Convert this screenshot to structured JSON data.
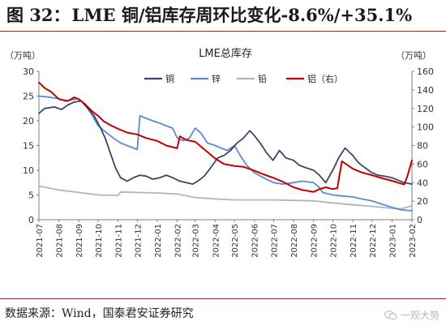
{
  "figure": {
    "number": "图 32：",
    "title": "LME 铜/铝库存周环比变化-8.6%/+35.1%",
    "source": "数据来源：Wind，国泰君安证券研究",
    "watermark": "一观大势",
    "watermark_icon": "wechat-icon"
  },
  "colors": {
    "rule": "#9b2a2a",
    "copper": "#3a4663",
    "zinc": "#5b8bd0",
    "lead": "#b4b4b4",
    "aluminum": "#c00000"
  },
  "chart_data": {
    "type": "line",
    "title": "LME总库存",
    "y_left_unit": "（万吨）",
    "y_right_unit": "（万吨）",
    "ylim_left": [
      0,
      30
    ],
    "ylim_right": [
      0,
      160
    ],
    "yticks_left": [
      "0",
      "5",
      "10",
      "15",
      "20",
      "25",
      "30"
    ],
    "yticks_right": [
      "0",
      "20",
      "40",
      "60",
      "80",
      "100",
      "120",
      "140",
      "160"
    ],
    "xlim": [
      "2021-07-01",
      "2023-02-01"
    ],
    "xticks": [
      "2021-07",
      "2021-08",
      "2021-09",
      "2021-10",
      "2021-11",
      "2021-12",
      "2022-01",
      "2022-02",
      "2022-03",
      "2022-04",
      "2022-05",
      "2022-06",
      "2022-07",
      "2022-08",
      "2022-09",
      "2022-10",
      "2022-11",
      "2022-12",
      "2023-01",
      "2023-02"
    ],
    "grid": false,
    "legend": "top-right",
    "series": [
      {
        "name": "铜",
        "axis": "left",
        "color_key": "copper",
        "x": [
          "2021-07-01",
          "2021-07-10",
          "2021-07-25",
          "2021-08-05",
          "2021-08-15",
          "2021-08-25",
          "2021-09-05",
          "2021-09-15",
          "2021-09-25",
          "2021-10-05",
          "2021-10-12",
          "2021-10-20",
          "2021-10-28",
          "2021-11-05",
          "2021-11-15",
          "2021-11-25",
          "2021-12-05",
          "2021-12-15",
          "2021-12-25",
          "2022-01-05",
          "2022-01-15",
          "2022-01-25",
          "2022-02-05",
          "2022-02-15",
          "2022-02-25",
          "2022-03-05",
          "2022-03-15",
          "2022-03-25",
          "2022-04-05",
          "2022-04-15",
          "2022-04-25",
          "2022-05-05",
          "2022-05-15",
          "2022-05-25",
          "2022-06-01",
          "2022-06-10",
          "2022-06-20",
          "2022-06-30",
          "2022-07-10",
          "2022-07-20",
          "2022-08-01",
          "2022-08-10",
          "2022-08-20",
          "2022-09-01",
          "2022-09-10",
          "2022-09-20",
          "2022-10-01",
          "2022-10-10",
          "2022-10-20",
          "2022-11-01",
          "2022-11-10",
          "2022-11-20",
          "2022-12-01",
          "2022-12-10",
          "2022-12-20",
          "2023-01-01",
          "2023-01-10",
          "2023-01-20",
          "2023-02-01"
        ],
        "values": [
          21.5,
          22.5,
          22.8,
          22.3,
          23.2,
          23.8,
          24.0,
          22.5,
          21.0,
          18.5,
          16.5,
          13.5,
          10.5,
          8.5,
          7.8,
          8.5,
          9.0,
          8.8,
          8.2,
          8.5,
          9.0,
          8.5,
          7.8,
          7.5,
          7.2,
          7.8,
          8.8,
          10.5,
          12.5,
          13.0,
          14.0,
          15.5,
          16.5,
          18.0,
          17.0,
          15.5,
          13.5,
          12.0,
          14.0,
          12.5,
          12.0,
          11.0,
          10.5,
          10.0,
          9.0,
          7.5,
          10.0,
          12.5,
          14.5,
          13.0,
          11.5,
          10.5,
          9.5,
          9.0,
          8.8,
          8.5,
          8.0,
          7.5,
          7.2
        ]
      },
      {
        "name": "锌",
        "axis": "left",
        "color_key": "zinc",
        "x": [
          "2021-07-01",
          "2021-07-15",
          "2021-08-01",
          "2021-08-10",
          "2021-08-20",
          "2021-08-30",
          "2021-09-10",
          "2021-09-20",
          "2021-10-01",
          "2021-10-15",
          "2021-10-25",
          "2021-11-05",
          "2021-11-15",
          "2021-11-25",
          "2021-12-01",
          "2021-12-05",
          "2021-12-15",
          "2021-12-25",
          "2022-01-05",
          "2022-01-15",
          "2022-01-25",
          "2022-02-01",
          "2022-02-10",
          "2022-02-20",
          "2022-03-01",
          "2022-03-10",
          "2022-03-20",
          "2022-04-01",
          "2022-04-10",
          "2022-04-20",
          "2022-05-01",
          "2022-05-10",
          "2022-05-20",
          "2022-06-01",
          "2022-06-15",
          "2022-07-01",
          "2022-07-15",
          "2022-08-01",
          "2022-08-15",
          "2022-09-01",
          "2022-09-10",
          "2022-09-15",
          "2022-10-01",
          "2022-10-15",
          "2022-11-01",
          "2022-11-15",
          "2022-12-01",
          "2022-12-15",
          "2023-01-01",
          "2023-01-15",
          "2023-02-01"
        ],
        "values": [
          25.0,
          24.8,
          24.5,
          24.0,
          24.2,
          24.5,
          23.5,
          21.5,
          19.0,
          17.5,
          16.5,
          15.5,
          15.0,
          14.5,
          14.2,
          21.0,
          20.5,
          20.0,
          19.5,
          19.0,
          18.5,
          16.5,
          16.0,
          16.5,
          18.5,
          17.5,
          15.5,
          15.0,
          14.5,
          14.0,
          15.0,
          13.0,
          11.0,
          9.5,
          8.5,
          7.5,
          7.2,
          7.5,
          7.8,
          7.5,
          6.5,
          5.5,
          5.0,
          4.8,
          4.6,
          4.2,
          3.8,
          3.2,
          2.5,
          2.0,
          1.8
        ]
      },
      {
        "name": "铅",
        "axis": "left",
        "color_key": "lead",
        "x": [
          "2021-07-01",
          "2021-08-01",
          "2021-09-01",
          "2021-10-01",
          "2021-11-01",
          "2021-11-05",
          "2021-12-01",
          "2022-01-01",
          "2022-02-01",
          "2022-03-01",
          "2022-04-01",
          "2022-05-01",
          "2022-06-01",
          "2022-07-01",
          "2022-08-01",
          "2022-09-01",
          "2022-10-01",
          "2022-11-01",
          "2022-12-01",
          "2023-01-01",
          "2023-01-15",
          "2023-02-01"
        ],
        "values": [
          6.8,
          6.0,
          5.5,
          5.0,
          4.9,
          5.6,
          5.5,
          5.4,
          5.2,
          4.5,
          4.2,
          4.0,
          4.0,
          4.0,
          3.9,
          3.8,
          3.4,
          3.0,
          2.7,
          2.3,
          2.2,
          2.8
        ]
      },
      {
        "name": "铝（右）",
        "axis": "right",
        "color_key": "aluminum",
        "x": [
          "2021-07-01",
          "2021-07-10",
          "2021-07-20",
          "2021-08-01",
          "2021-08-15",
          "2021-08-25",
          "2021-09-01",
          "2021-09-10",
          "2021-09-20",
          "2021-10-01",
          "2021-10-10",
          "2021-10-20",
          "2021-11-01",
          "2021-11-15",
          "2021-12-01",
          "2021-12-15",
          "2022-01-01",
          "2022-01-15",
          "2022-02-01",
          "2022-02-05",
          "2022-02-15",
          "2022-03-01",
          "2022-03-15",
          "2022-04-01",
          "2022-04-15",
          "2022-05-01",
          "2022-05-15",
          "2022-06-01",
          "2022-06-15",
          "2022-07-01",
          "2022-07-15",
          "2022-08-01",
          "2022-08-15",
          "2022-09-01",
          "2022-09-10",
          "2022-09-20",
          "2022-10-01",
          "2022-10-08",
          "2022-10-15",
          "2022-11-01",
          "2022-11-15",
          "2022-12-01",
          "2022-12-15",
          "2023-01-01",
          "2023-01-10",
          "2023-01-20",
          "2023-01-25",
          "2023-02-01"
        ],
        "values": [
          148,
          142,
          138,
          130,
          128,
          132,
          130,
          125,
          118,
          112,
          106,
          102,
          98,
          94,
          92,
          88,
          85,
          80,
          77,
          90,
          86,
          84,
          76,
          66,
          60,
          58,
          57,
          53,
          49,
          45,
          41,
          35,
          32,
          30,
          33,
          35,
          33,
          34,
          63,
          55,
          51,
          48,
          45,
          42,
          40,
          38,
          47,
          64
        ]
      }
    ]
  }
}
